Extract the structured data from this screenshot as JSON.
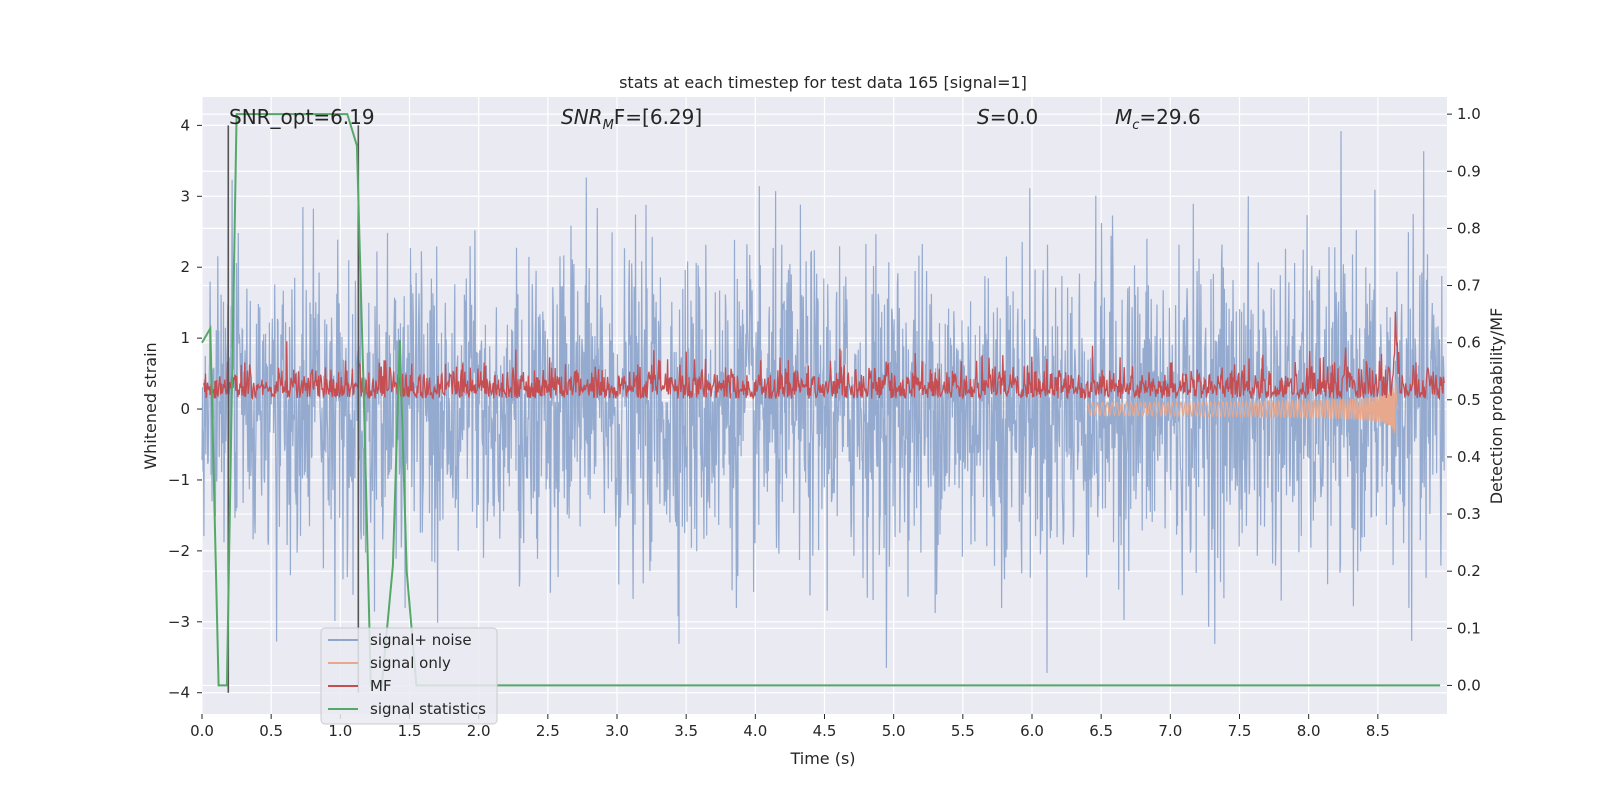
{
  "chart_data": {
    "type": "line",
    "title": "stats at each timestep for test data 165 [signal=1]",
    "xlabel": "Time (s)",
    "ylabel_left": "Whitened strain",
    "ylabel_right": "Detection probability/MF",
    "xlim": [
      0.0,
      9.0
    ],
    "ylim_left": [
      -4.3,
      4.4
    ],
    "ylim_right": [
      -0.05,
      1.03
    ],
    "x_ticks": [
      "0.0",
      "0.5",
      "1.0",
      "1.5",
      "2.0",
      "2.5",
      "3.0",
      "3.5",
      "4.0",
      "4.5",
      "5.0",
      "5.5",
      "6.0",
      "6.5",
      "7.0",
      "7.5",
      "8.0",
      "8.5"
    ],
    "y_ticks_left": [
      "−4",
      "−3",
      "−2",
      "−1",
      "0",
      "1",
      "2",
      "3",
      "4"
    ],
    "y_ticks_right": [
      "0.0",
      "0.1",
      "0.2",
      "0.3",
      "0.4",
      "0.5",
      "0.6",
      "0.7",
      "0.8",
      "0.9",
      "1.0"
    ],
    "grid": true,
    "legend_position": "lower-left",
    "annotations": {
      "snr_opt": "SNR_opt=6.19",
      "snr_mf_main": "SNR",
      "snr_mf_sub": "M",
      "snr_mf_rest": "F=[6.29]",
      "s_italic": "S",
      "s_rest": "=0.0",
      "mc_main": "M",
      "mc_sub": "c",
      "mc_rest": "=29.6"
    },
    "vertical_lines_x": [
      0.19,
      1.13
    ],
    "series": [
      {
        "name": "signal+ noise",
        "color": "#8fa6cc",
        "axis": "left",
        "description_values": {
          "std": 1.0,
          "mean": 0.0
        }
      },
      {
        "name": "signal only",
        "color": "#e8a88e",
        "axis": "left",
        "chirp_end_x": 8.63,
        "peak_amplitude": 1.3
      },
      {
        "name": "MF",
        "color": "#c44e52",
        "axis": "right",
        "baseline": 0.52,
        "peak": {
          "x": 8.63,
          "y": 0.62
        }
      },
      {
        "name": "signal statistics",
        "color": "#55a868",
        "axis": "right",
        "x": [
          0.0,
          0.06,
          0.12,
          0.18,
          0.25,
          0.35,
          0.5,
          0.7,
          0.9,
          1.05,
          1.12,
          1.17,
          1.22,
          1.3,
          1.38,
          1.43,
          1.48,
          1.55,
          1.62,
          2.0,
          3.0,
          4.0,
          5.0,
          6.0,
          7.0,
          8.0,
          8.95
        ],
        "y": [
          0.6,
          0.625,
          0.0,
          0.0,
          1.0,
          1.0,
          1.0,
          1.0,
          1.0,
          1.0,
          0.945,
          0.5,
          0.0,
          0.0,
          0.21,
          0.605,
          0.2,
          0.0,
          0.0,
          0.0,
          0.0,
          0.0,
          0.0,
          0.0,
          0.0,
          0.0,
          0.0
        ]
      }
    ]
  }
}
